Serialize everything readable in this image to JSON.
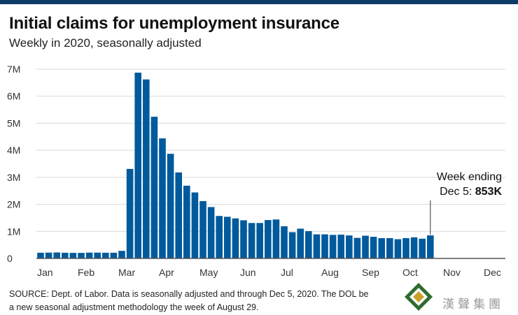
{
  "header": {
    "title": "Initial claims for unemployment insurance",
    "subtitle": "Weekly in 2020, seasonally adjusted"
  },
  "chart_data": {
    "type": "bar",
    "title": "Initial claims for unemployment insurance",
    "subtitle": "Weekly in 2020, seasonally adjusted",
    "xlabel": "",
    "ylabel": "",
    "ylim": [
      0,
      7000000
    ],
    "y_ticks": [
      {
        "value": 0,
        "label": "0"
      },
      {
        "value": 1000000,
        "label": "1M"
      },
      {
        "value": 2000000,
        "label": "2M"
      },
      {
        "value": 3000000,
        "label": "3M"
      },
      {
        "value": 4000000,
        "label": "4M"
      },
      {
        "value": 5000000,
        "label": "5M"
      },
      {
        "value": 6000000,
        "label": "6M"
      },
      {
        "value": 7000000,
        "label": "7M"
      }
    ],
    "month_labels": [
      {
        "label": "Jan",
        "week_index": 0
      },
      {
        "label": "Feb",
        "week_index": 5
      },
      {
        "label": "Mar",
        "week_index": 10
      },
      {
        "label": "Apr",
        "week_index": 15
      },
      {
        "label": "May",
        "week_index": 20
      },
      {
        "label": "Jun",
        "week_index": 25
      },
      {
        "label": "Jul",
        "week_index": 30
      },
      {
        "label": "Aug",
        "week_index": 35
      },
      {
        "label": "Sep",
        "week_index": 40
      },
      {
        "label": "Oct",
        "week_index": 45
      },
      {
        "label": "Nov",
        "week_index": 50
      },
      {
        "label": "Dec",
        "week_index": 55
      }
    ],
    "values": [
      210000,
      215000,
      220000,
      210000,
      205000,
      205000,
      215000,
      215000,
      210000,
      210000,
      280000,
      3310000,
      6870000,
      6620000,
      5240000,
      4440000,
      3870000,
      3180000,
      2690000,
      2440000,
      2120000,
      1900000,
      1570000,
      1540000,
      1480000,
      1410000,
      1310000,
      1310000,
      1420000,
      1440000,
      1190000,
      970000,
      1100000,
      1010000,
      890000,
      890000,
      870000,
      880000,
      850000,
      760000,
      840000,
      800000,
      750000,
      750000,
      710000,
      750000,
      780000,
      730000,
      853000
    ],
    "annotation": {
      "line1": "Week ending",
      "line2_prefix": "Dec 5: ",
      "line2_value": "853K"
    },
    "bar_color": "#005a9c",
    "grid": true
  },
  "footer": {
    "source_line1": "SOURCE: Dept. of Labor. Data is seasonally adjusted and through Dec 5, 2020. The DOL be",
    "source_line2": "a new seasonal adjustment methodology the week of August 29.",
    "watermark_text": "漢聲集團"
  }
}
